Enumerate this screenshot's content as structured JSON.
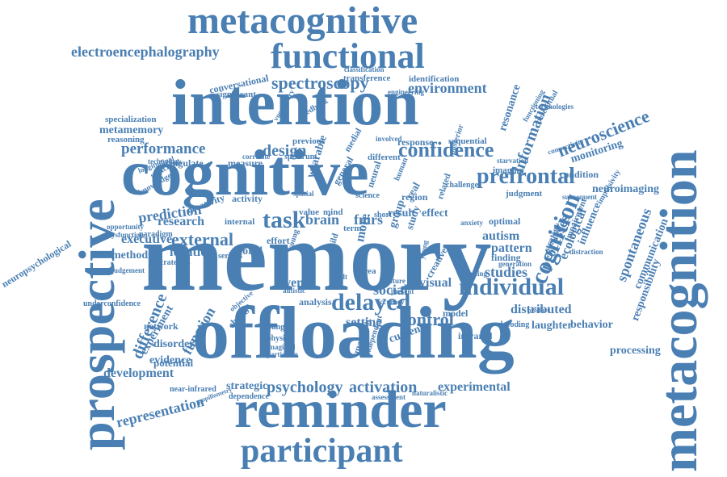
{
  "cloud": {
    "color": "#4a7fb3",
    "background": "#ffffff",
    "words": [
      {
        "text": "memory"
      },
      {
        "text": "offloading"
      },
      {
        "text": "cognitive"
      },
      {
        "text": "intention"
      },
      {
        "text": "prospective"
      },
      {
        "text": "metacognition"
      },
      {
        "text": "reminder"
      },
      {
        "text": "metacognitive"
      },
      {
        "text": "functional"
      },
      {
        "text": "participant"
      },
      {
        "text": "electroencephalography"
      },
      {
        "text": "confidence"
      },
      {
        "text": "prefrontal"
      },
      {
        "text": "individual"
      },
      {
        "text": "delayed"
      },
      {
        "text": "task"
      },
      {
        "text": "performance"
      },
      {
        "text": "spectroscopy"
      },
      {
        "text": "environment"
      },
      {
        "text": "neuroscience"
      },
      {
        "text": "information"
      },
      {
        "text": "cognition"
      },
      {
        "text": "external"
      },
      {
        "text": "design"
      },
      {
        "text": "psychology"
      },
      {
        "text": "activation"
      },
      {
        "text": "experimental"
      },
      {
        "text": "representation"
      },
      {
        "text": "difference"
      },
      {
        "text": "distributed"
      },
      {
        "text": "control"
      },
      {
        "text": "social"
      },
      {
        "text": "brain"
      },
      {
        "text": "fnirs"
      },
      {
        "text": "research"
      },
      {
        "text": "prediction"
      },
      {
        "text": "executive"
      },
      {
        "text": "ideation"
      },
      {
        "text": "function"
      },
      {
        "text": "development"
      },
      {
        "text": "strategic"
      },
      {
        "text": "neuroimaging"
      },
      {
        "text": "monitoring"
      },
      {
        "text": "studies"
      },
      {
        "text": "spontaneous"
      },
      {
        "text": "communication"
      },
      {
        "text": "responsibility"
      },
      {
        "text": "processing"
      },
      {
        "text": "laughter"
      },
      {
        "text": "behavior"
      },
      {
        "text": "metamemory"
      },
      {
        "text": "neuropsychological"
      },
      {
        "text": "event"
      },
      {
        "text": "visual"
      },
      {
        "text": "setting"
      },
      {
        "text": "analysis"
      },
      {
        "text": "experiment"
      },
      {
        "text": "evidence"
      },
      {
        "text": "disorder"
      },
      {
        "text": "potential"
      },
      {
        "text": "network"
      },
      {
        "text": "method"
      },
      {
        "text": "autism"
      },
      {
        "text": "pattern"
      },
      {
        "text": "finding"
      },
      {
        "text": "processes"
      },
      {
        "text": "ecological"
      },
      {
        "text": "influence"
      },
      {
        "text": "resonance"
      },
      {
        "text": "conversational"
      },
      {
        "text": "significant"
      },
      {
        "text": "transference"
      },
      {
        "text": "identification"
      },
      {
        "text": "specialization"
      },
      {
        "text": "reasoning"
      },
      {
        "text": "sequential"
      },
      {
        "text": "response"
      },
      {
        "text": "previous"
      },
      {
        "text": "cingulate"
      },
      {
        "text": "measure"
      },
      {
        "text": "creativity"
      },
      {
        "text": "paradigm"
      },
      {
        "text": "effort"
      },
      {
        "text": "world"
      },
      {
        "text": "internal"
      },
      {
        "text": "activity"
      },
      {
        "text": "result"
      },
      {
        "text": "effect"
      },
      {
        "text": "mind"
      },
      {
        "text": "term"
      },
      {
        "text": "value"
      },
      {
        "text": "group"
      },
      {
        "text": "study"
      },
      {
        "text": "more"
      },
      {
        "text": "model"
      },
      {
        "text": "current"
      },
      {
        "text": "magnetic"
      },
      {
        "text": "infrared"
      },
      {
        "text": "decoding"
      },
      {
        "text": "optimal"
      },
      {
        "text": "judgment"
      },
      {
        "text": "condition"
      },
      {
        "text": "connectivity"
      },
      {
        "text": "impulsivity"
      },
      {
        "text": "imaging"
      },
      {
        "text": "challenge"
      },
      {
        "text": "starvation"
      },
      {
        "text": "different"
      },
      {
        "text": "spectrum"
      },
      {
        "text": "correlate"
      },
      {
        "text": "perceptual"
      },
      {
        "text": "functioning"
      },
      {
        "text": "technologies"
      },
      {
        "text": "classification"
      },
      {
        "text": "engineering"
      },
      {
        "text": "feedback"
      },
      {
        "text": "vocabulary"
      },
      {
        "text": "underconfidence"
      },
      {
        "text": "dysfunction"
      },
      {
        "text": "opportunity"
      },
      {
        "text": "judgement"
      },
      {
        "text": "strategies"
      },
      {
        "text": "serious"
      },
      {
        "text": "wearable"
      },
      {
        "text": "autistic"
      },
      {
        "text": "young"
      },
      {
        "text": "child"
      },
      {
        "text": "adult"
      },
      {
        "text": "short"
      },
      {
        "text": "spatial"
      },
      {
        "text": "real"
      },
      {
        "text": "area"
      },
      {
        "text": "future"
      },
      {
        "text": "accuracy"
      },
      {
        "text": "young"
      },
      {
        "text": "younger"
      },
      {
        "text": "physical"
      },
      {
        "text": "imagined"
      },
      {
        "text": "particular"
      },
      {
        "text": "independent"
      },
      {
        "text": "change"
      },
      {
        "text": "objective"
      },
      {
        "text": "assessment"
      },
      {
        "text": "naturalistic"
      },
      {
        "text": "dependence"
      },
      {
        "text": "near-infrared"
      },
      {
        "text": "pupillometry"
      },
      {
        "text": "subsequent"
      },
      {
        "text": "distraction"
      },
      {
        "text": "impairment"
      },
      {
        "text": "strategy"
      },
      {
        "text": "product"
      },
      {
        "text": "generation"
      },
      {
        "text": "working"
      },
      {
        "text": "anxiety"
      },
      {
        "text": "creative"
      },
      {
        "text": "switching"
      },
      {
        "text": "knowledge"
      },
      {
        "text": "technology"
      },
      {
        "text": "longitudinal"
      },
      {
        "text": "present"
      },
      {
        "text": "involved"
      },
      {
        "text": "general"
      },
      {
        "text": "science"
      },
      {
        "text": "neural"
      },
      {
        "text": "related"
      },
      {
        "text": "region"
      },
      {
        "text": "human"
      },
      {
        "text": "posterior"
      },
      {
        "text": "medial"
      }
    ]
  }
}
